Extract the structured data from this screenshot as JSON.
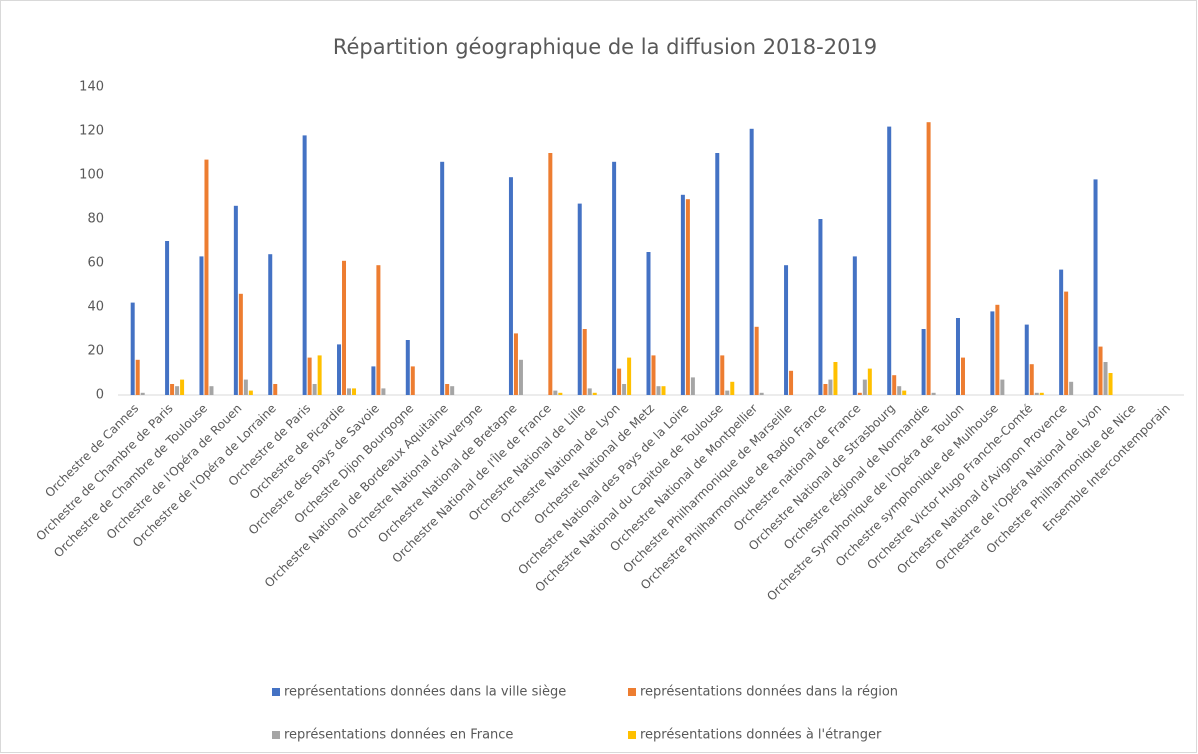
{
  "chart_data": {
    "type": "bar",
    "title": "Répartition géographique de la diffusion 2018-2019",
    "categories": [
      "Orchestre de Cannes",
      "Orchestre de Chambre de Paris",
      "Orchestre de Chambre de Toulouse",
      "Orchestre de l'Opéra de Rouen",
      "Orchestre de l'Opéra de Lorraine",
      "Orchestre de Paris",
      "Orchestre de Picardie",
      "Orchestre des pays de Savoie",
      "Orchestre Dijon Bourgogne",
      "Orchestre National de Bordeaux Aquitaine",
      "Orchestre National d'Auvergne",
      "Orchestre National de Bretagne",
      "Orchestre National de l'Île de France",
      "Orchestre National de Lille",
      "Orchestre National de Lyon",
      "Orchestre National de Metz",
      "Orchestre National des Pays de la Loire",
      "Orchestre National du Capitole de Toulouse",
      "Orchestre National de Montpellier",
      "Orchestre Philharmonique de Marseille",
      "Orchestre Philharmonique de Radio France",
      "Orchestre national de France",
      "Orchestre National de Strasbourg",
      "Orchestre régional de Normandie",
      "Orchestre Symphonique de l'Opéra de Toulon",
      "Orchestre symphonique de Mulhouse",
      "Orchestre Victor Hugo Franche-Comté",
      "Orchestre National d'Avignon Provence",
      "Orchestre de l'Opéra National de Lyon",
      "Orchestre Philharmonique de Nice",
      "Ensemble Intercontemporain"
    ],
    "series": [
      {
        "name": "représentations données dans la ville siège",
        "color": "#4472c4",
        "values": [
          42,
          70,
          63,
          86,
          64,
          118,
          23,
          13,
          25,
          106,
          0,
          99,
          0,
          87,
          106,
          65,
          91,
          110,
          121,
          59,
          80,
          63,
          122,
          30,
          35,
          38,
          32,
          57,
          98,
          0,
          0
        ]
      },
      {
        "name": "représentations données dans la région",
        "color": "#ed7d31",
        "values": [
          16,
          5,
          107,
          46,
          5,
          17,
          61,
          59,
          13,
          5,
          0,
          28,
          110,
          30,
          12,
          18,
          89,
          18,
          31,
          11,
          5,
          1,
          9,
          124,
          17,
          41,
          14,
          47,
          22,
          0,
          0
        ]
      },
      {
        "name": "représentations données en France",
        "color": "#a5a5a5",
        "values": [
          1,
          4,
          4,
          7,
          0,
          5,
          3,
          3,
          0,
          4,
          0,
          16,
          2,
          3,
          5,
          4,
          8,
          2,
          1,
          0,
          7,
          7,
          4,
          1,
          0,
          7,
          1,
          6,
          15,
          0,
          0
        ]
      },
      {
        "name": "représentations données à l'étranger",
        "color": "#ffc000",
        "values": [
          0,
          7,
          0,
          2,
          0,
          18,
          3,
          0,
          0,
          0,
          0,
          0,
          1,
          1,
          17,
          4,
          0,
          6,
          0,
          0,
          15,
          12,
          2,
          0,
          0,
          0,
          1,
          0,
          10,
          0,
          0
        ]
      }
    ],
    "ylim": [
      0,
      140
    ],
    "yticks": [
      0,
      20,
      40,
      60,
      80,
      100,
      120,
      140
    ],
    "legend": "bottom"
  }
}
